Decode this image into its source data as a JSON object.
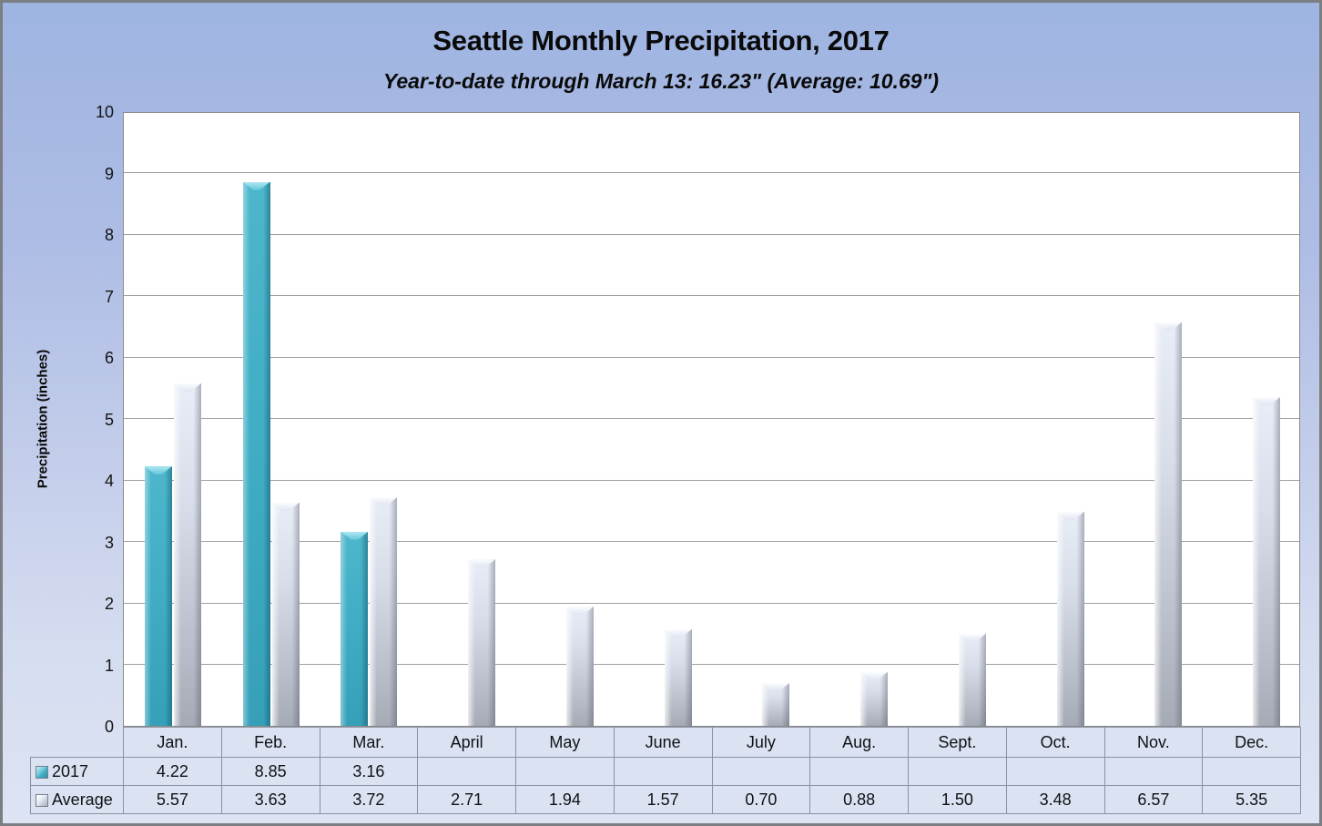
{
  "chart_data": {
    "type": "bar",
    "title": "Seattle Monthly Precipitation, 2017",
    "subtitle": "Year-to-date through March 13: 16.23\" (Average: 10.69\")",
    "xlabel": "",
    "ylabel": "Precipitation (inches)",
    "ylim": [
      0,
      10
    ],
    "yticks": [
      0,
      1,
      2,
      3,
      4,
      5,
      6,
      7,
      8,
      9,
      10
    ],
    "grid": "horizontal-only",
    "legend_position": "data-table-left",
    "data_table_shown": true,
    "value_decimals": 2,
    "categories": [
      "Jan.",
      "Feb.",
      "Mar.",
      "April",
      "May",
      "June",
      "July",
      "Aug.",
      "Sept.",
      "Oct.",
      "Nov.",
      "Dec."
    ],
    "series": [
      {
        "name": "2017",
        "color": "#41aec5",
        "values": [
          4.22,
          8.85,
          3.16,
          null,
          null,
          null,
          null,
          null,
          null,
          null,
          null,
          null
        ]
      },
      {
        "name": "Average",
        "color": "#d4d9e4",
        "values": [
          5.57,
          3.63,
          3.72,
          2.71,
          1.94,
          1.57,
          0.7,
          0.88,
          1.5,
          3.48,
          6.57,
          5.35
        ]
      }
    ]
  },
  "colors": {
    "background_top": "#9eb4e1",
    "background_bottom": "#dde4f3",
    "plot_background": "#ffffff",
    "gridline": "#a0a0a0",
    "table_border": "#8a92a2",
    "table_cell_background": "#dbe2f1",
    "series_2017": "#41aec5",
    "series_average": "#d4d9e4",
    "frame_border": "#7b7e82"
  }
}
